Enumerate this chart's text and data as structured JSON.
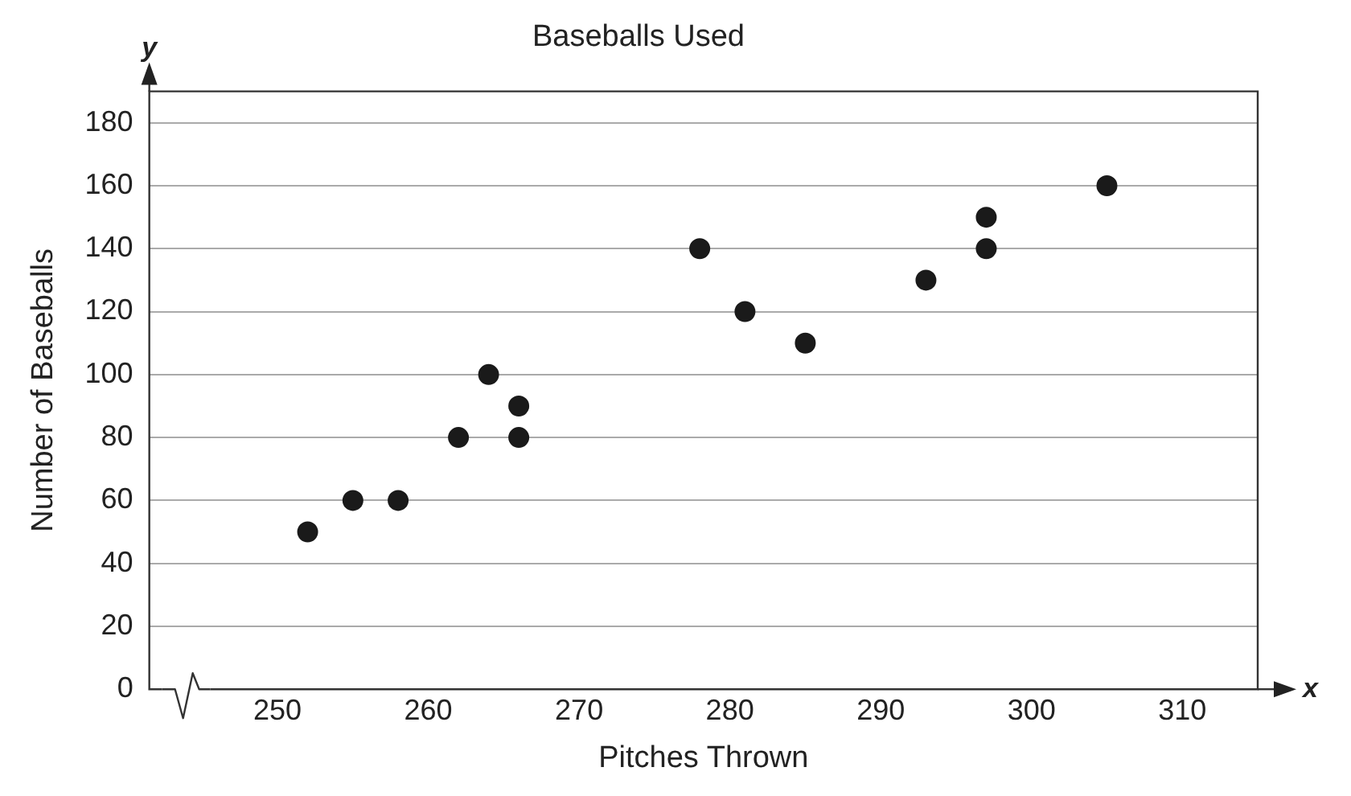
{
  "chart_data": {
    "type": "scatter",
    "title": "Baseballs Used",
    "xlabel": "Pitches Thrown",
    "ylabel": "Number of Baseballs",
    "annotations": [
      "x",
      "y"
    ],
    "series": [
      {
        "color": "#1a1a1a",
        "x": [
          252,
          255,
          258,
          262,
          264,
          266,
          266,
          278,
          281,
          285,
          293,
          297,
          297,
          305
        ],
        "values": [
          50,
          60,
          60,
          80,
          100,
          90,
          80,
          140,
          120,
          110,
          130,
          150,
          140,
          160
        ]
      }
    ],
    "xlim": [
      241.5,
      315
    ],
    "xticks": [
      250,
      260,
      270,
      280,
      290,
      300,
      310
    ],
    "ylim": [
      0,
      190
    ],
    "yticks": [
      0,
      20,
      40,
      60,
      80,
      100,
      120,
      140,
      160,
      180
    ],
    "grid": "y",
    "legend": false,
    "marker": "circle"
  }
}
